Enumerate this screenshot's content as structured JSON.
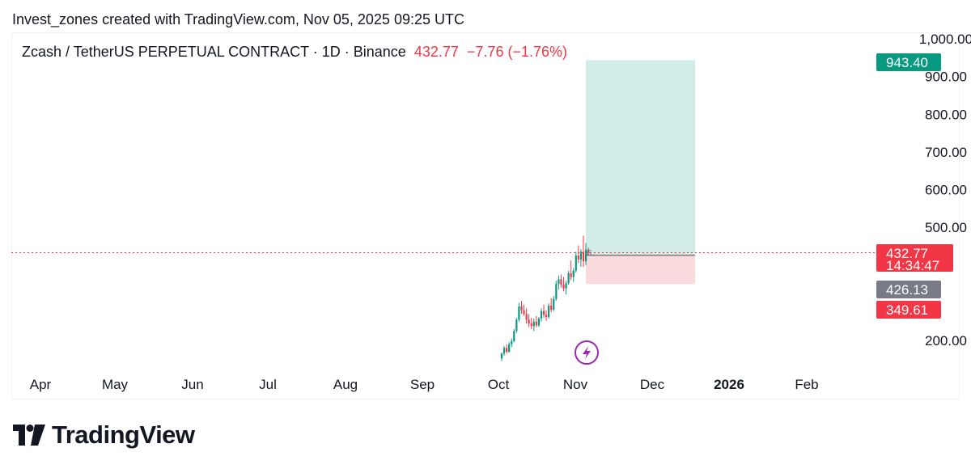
{
  "header": {
    "credit": "Invest_zones created with TradingView.com, Nov 05, 2025 09:25 UTC",
    "symbol": "Zcash / TetherUS PERPETUAL CONTRACT · 1D · Binance",
    "last": "432.77",
    "change": "−7.76 (−1.76%)"
  },
  "footer": {
    "brand": "TradingView"
  },
  "colors": {
    "up": "#089981",
    "down": "#f23645",
    "profit_zone": "#d1ece6",
    "loss_zone": "#fadadc",
    "entry_tag": "#787b86",
    "accent_purple": "#9c27b0"
  },
  "icons": {
    "lightning": "lightning-icon",
    "logo": "tradingview-logo-icon"
  },
  "chart_data": {
    "type": "candlestick",
    "x_ticks": [
      "Apr",
      "May",
      "Jun",
      "Jul",
      "Aug",
      "Sep",
      "Oct",
      "Nov",
      "Dec",
      "2026",
      "Feb"
    ],
    "y_ticks": [
      "1,000.00",
      "900.00",
      "800.00",
      "700.00",
      "600.00",
      "500.00",
      "200.00"
    ],
    "y_tick_values": [
      1000,
      900,
      800,
      700,
      600,
      500,
      200
    ],
    "ylim": [
      140,
      1010
    ],
    "price_tags": [
      {
        "label": "943.40",
        "value": 943.4,
        "kind": "target"
      },
      {
        "label": "432.77",
        "sub": "14:34:47",
        "value": 432.77,
        "kind": "last"
      },
      {
        "label": "426.13",
        "value": 426.13,
        "kind": "entry"
      },
      {
        "label": "349.61",
        "value": 349.61,
        "kind": "stop"
      }
    ],
    "position": {
      "entry": 426.13,
      "target": 943.4,
      "stop": 349.61,
      "start": "Nov 05",
      "end": "Dec 15"
    },
    "last_price": 432.77,
    "candles": [
      {
        "d": "Oct 01",
        "o": 152,
        "h": 168,
        "l": 145,
        "c": 165
      },
      {
        "d": "Oct 02",
        "o": 165,
        "h": 185,
        "l": 160,
        "c": 180
      },
      {
        "d": "Oct 03",
        "o": 180,
        "h": 190,
        "l": 165,
        "c": 170
      },
      {
        "d": "Oct 04",
        "o": 170,
        "h": 195,
        "l": 168,
        "c": 190
      },
      {
        "d": "Oct 05",
        "o": 190,
        "h": 205,
        "l": 182,
        "c": 198
      },
      {
        "d": "Oct 06",
        "o": 198,
        "h": 230,
        "l": 195,
        "c": 225
      },
      {
        "d": "Oct 07",
        "o": 225,
        "h": 260,
        "l": 220,
        "c": 255
      },
      {
        "d": "Oct 08",
        "o": 255,
        "h": 300,
        "l": 250,
        "c": 290
      },
      {
        "d": "Oct 09",
        "o": 290,
        "h": 305,
        "l": 270,
        "c": 280
      },
      {
        "d": "Oct 10",
        "o": 280,
        "h": 295,
        "l": 265,
        "c": 270
      },
      {
        "d": "Oct 11",
        "o": 270,
        "h": 285,
        "l": 245,
        "c": 255
      },
      {
        "d": "Oct 12",
        "o": 255,
        "h": 270,
        "l": 235,
        "c": 245
      },
      {
        "d": "Oct 13",
        "o": 245,
        "h": 260,
        "l": 230,
        "c": 238
      },
      {
        "d": "Oct 14",
        "o": 238,
        "h": 258,
        "l": 225,
        "c": 250
      },
      {
        "d": "Oct 15",
        "o": 250,
        "h": 265,
        "l": 235,
        "c": 240
      },
      {
        "d": "Oct 16",
        "o": 240,
        "h": 262,
        "l": 236,
        "c": 258
      },
      {
        "d": "Oct 17",
        "o": 258,
        "h": 285,
        "l": 250,
        "c": 278
      },
      {
        "d": "Oct 18",
        "o": 278,
        "h": 295,
        "l": 260,
        "c": 268
      },
      {
        "d": "Oct 19",
        "o": 268,
        "h": 280,
        "l": 252,
        "c": 262
      },
      {
        "d": "Oct 20",
        "o": 262,
        "h": 298,
        "l": 258,
        "c": 292
      },
      {
        "d": "Oct 21",
        "o": 292,
        "h": 312,
        "l": 275,
        "c": 282
      },
      {
        "d": "Oct 22",
        "o": 282,
        "h": 318,
        "l": 278,
        "c": 310
      },
      {
        "d": "Oct 23",
        "o": 310,
        "h": 358,
        "l": 305,
        "c": 350
      },
      {
        "d": "Oct 24",
        "o": 350,
        "h": 372,
        "l": 335,
        "c": 362
      },
      {
        "d": "Oct 25",
        "o": 362,
        "h": 375,
        "l": 340,
        "c": 348
      },
      {
        "d": "Oct 26",
        "o": 348,
        "h": 368,
        "l": 330,
        "c": 338
      },
      {
        "d": "Oct 27",
        "o": 338,
        "h": 358,
        "l": 322,
        "c": 352
      },
      {
        "d": "Oct 28",
        "o": 352,
        "h": 385,
        "l": 348,
        "c": 378
      },
      {
        "d": "Oct 29",
        "o": 378,
        "h": 412,
        "l": 360,
        "c": 368
      },
      {
        "d": "Oct 30",
        "o": 368,
        "h": 392,
        "l": 355,
        "c": 385
      },
      {
        "d": "Oct 31",
        "o": 385,
        "h": 435,
        "l": 380,
        "c": 425
      },
      {
        "d": "Nov 01",
        "o": 425,
        "h": 452,
        "l": 405,
        "c": 415
      },
      {
        "d": "Nov 02",
        "o": 415,
        "h": 442,
        "l": 395,
        "c": 435
      },
      {
        "d": "Nov 03",
        "o": 435,
        "h": 478,
        "l": 395,
        "c": 410
      },
      {
        "d": "Nov 04",
        "o": 410,
        "h": 458,
        "l": 400,
        "c": 441
      },
      {
        "d": "Nov 05",
        "o": 441,
        "h": 446,
        "l": 425,
        "c": 432.77
      }
    ]
  }
}
